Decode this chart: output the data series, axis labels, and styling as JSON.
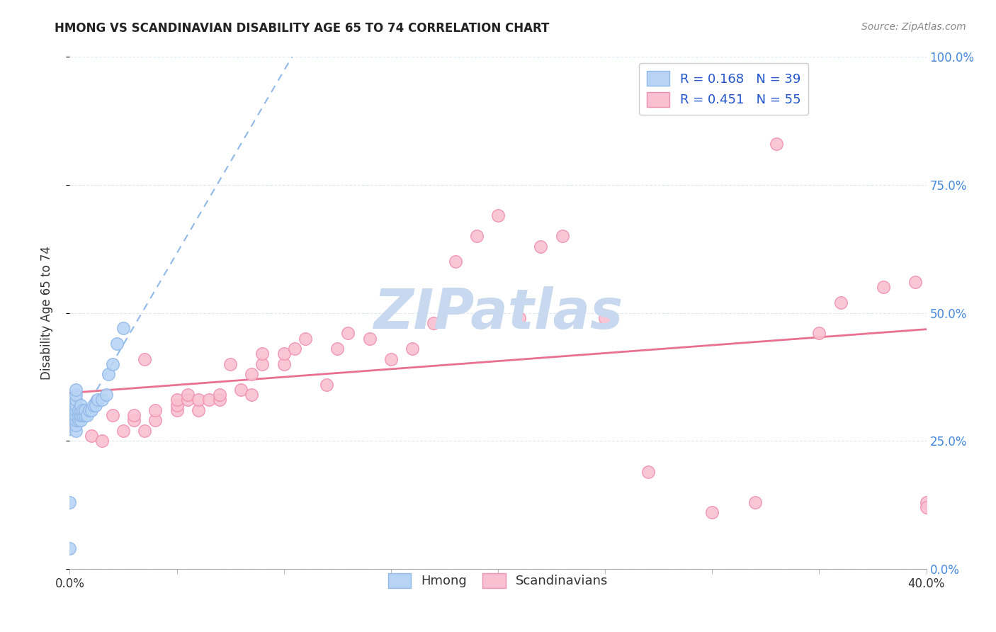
{
  "title": "HMONG VS SCANDINAVIAN DISABILITY AGE 65 TO 74 CORRELATION CHART",
  "source": "Source: ZipAtlas.com",
  "ylabel": "Disability Age 65 to 74",
  "legend_hmong_R": "R = 0.168",
  "legend_hmong_N": "N = 39",
  "legend_scand_R": "R = 0.451",
  "legend_scand_N": "N = 55",
  "hmong_marker_face": "#b8d4f5",
  "hmong_marker_edge": "#90b8e8",
  "scand_marker_face": "#f8c0d0",
  "scand_marker_edge": "#f090b0",
  "trend_hmong_color": "#90b8e8",
  "trend_scand_color": "#e87090",
  "watermark_color": "#c8d8ee",
  "background_color": "#ffffff",
  "grid_color": "#dde8f0",
  "title_color": "#222222",
  "source_color": "#888888",
  "axis_label_color": "#333333",
  "right_axis_color": "#4488dd",
  "legend_text_color": "#2255cc",
  "bottom_legend_color": "#333333",
  "xlim": [
    0.0,
    0.4
  ],
  "ylim": [
    0.0,
    1.0
  ],
  "hmong_x": [
    0.0,
    0.0,
    0.001,
    0.001,
    0.002,
    0.002,
    0.002,
    0.003,
    0.003,
    0.003,
    0.003,
    0.003,
    0.003,
    0.003,
    0.003,
    0.003,
    0.004,
    0.004,
    0.004,
    0.005,
    0.005,
    0.005,
    0.005,
    0.006,
    0.006,
    0.007,
    0.007,
    0.008,
    0.009,
    0.01,
    0.011,
    0.012,
    0.013,
    0.015,
    0.017,
    0.018,
    0.02,
    0.022,
    0.025
  ],
  "hmong_y": [
    0.04,
    0.13,
    0.29,
    0.3,
    0.3,
    0.31,
    0.32,
    0.27,
    0.28,
    0.29,
    0.3,
    0.31,
    0.32,
    0.33,
    0.34,
    0.35,
    0.29,
    0.3,
    0.31,
    0.29,
    0.3,
    0.31,
    0.32,
    0.3,
    0.31,
    0.3,
    0.31,
    0.3,
    0.31,
    0.31,
    0.32,
    0.32,
    0.33,
    0.33,
    0.34,
    0.38,
    0.4,
    0.44,
    0.47
  ],
  "scand_x": [
    0.0,
    0.01,
    0.015,
    0.02,
    0.025,
    0.03,
    0.03,
    0.035,
    0.035,
    0.04,
    0.04,
    0.05,
    0.05,
    0.05,
    0.055,
    0.055,
    0.06,
    0.06,
    0.065,
    0.07,
    0.07,
    0.075,
    0.08,
    0.085,
    0.085,
    0.09,
    0.09,
    0.1,
    0.1,
    0.105,
    0.11,
    0.12,
    0.125,
    0.13,
    0.14,
    0.15,
    0.16,
    0.17,
    0.18,
    0.19,
    0.2,
    0.21,
    0.22,
    0.23,
    0.25,
    0.27,
    0.3,
    0.32,
    0.33,
    0.35,
    0.36,
    0.38,
    0.395,
    0.4,
    0.4
  ],
  "scand_y": [
    0.28,
    0.26,
    0.25,
    0.3,
    0.27,
    0.29,
    0.3,
    0.27,
    0.41,
    0.29,
    0.31,
    0.31,
    0.32,
    0.33,
    0.33,
    0.34,
    0.31,
    0.33,
    0.33,
    0.33,
    0.34,
    0.4,
    0.35,
    0.34,
    0.38,
    0.4,
    0.42,
    0.4,
    0.42,
    0.43,
    0.45,
    0.36,
    0.43,
    0.46,
    0.45,
    0.41,
    0.43,
    0.48,
    0.6,
    0.65,
    0.69,
    0.49,
    0.63,
    0.65,
    0.49,
    0.19,
    0.11,
    0.13,
    0.83,
    0.46,
    0.52,
    0.55,
    0.56,
    0.13,
    0.12
  ]
}
